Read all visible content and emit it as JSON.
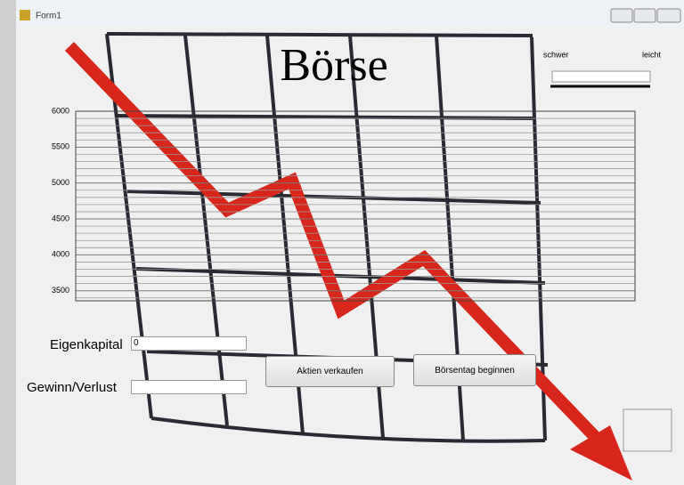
{
  "window": {
    "title": "Form1"
  },
  "heading": "Börse",
  "difficulty": {
    "left_label": "schwer",
    "right_label": "leicht"
  },
  "chart": {
    "ylim": [
      3360,
      6000
    ],
    "yticks": [
      3500,
      4000,
      4500,
      5000,
      5500,
      6000
    ],
    "minor_yticks": [
      3400,
      3600,
      3700,
      3800,
      3900,
      4100,
      4200,
      4300,
      4400,
      4600,
      4700,
      4800,
      4900,
      5100,
      5200,
      5300,
      5400,
      5600,
      5700,
      5800,
      5900
    ]
  },
  "form": {
    "capital_label": "Eigenkapital",
    "capital_value": "0",
    "profit_label": "Gewinn/Verlust",
    "sell_button": "Aktien verkaufen",
    "start_button": "Börsentag beginnen"
  }
}
